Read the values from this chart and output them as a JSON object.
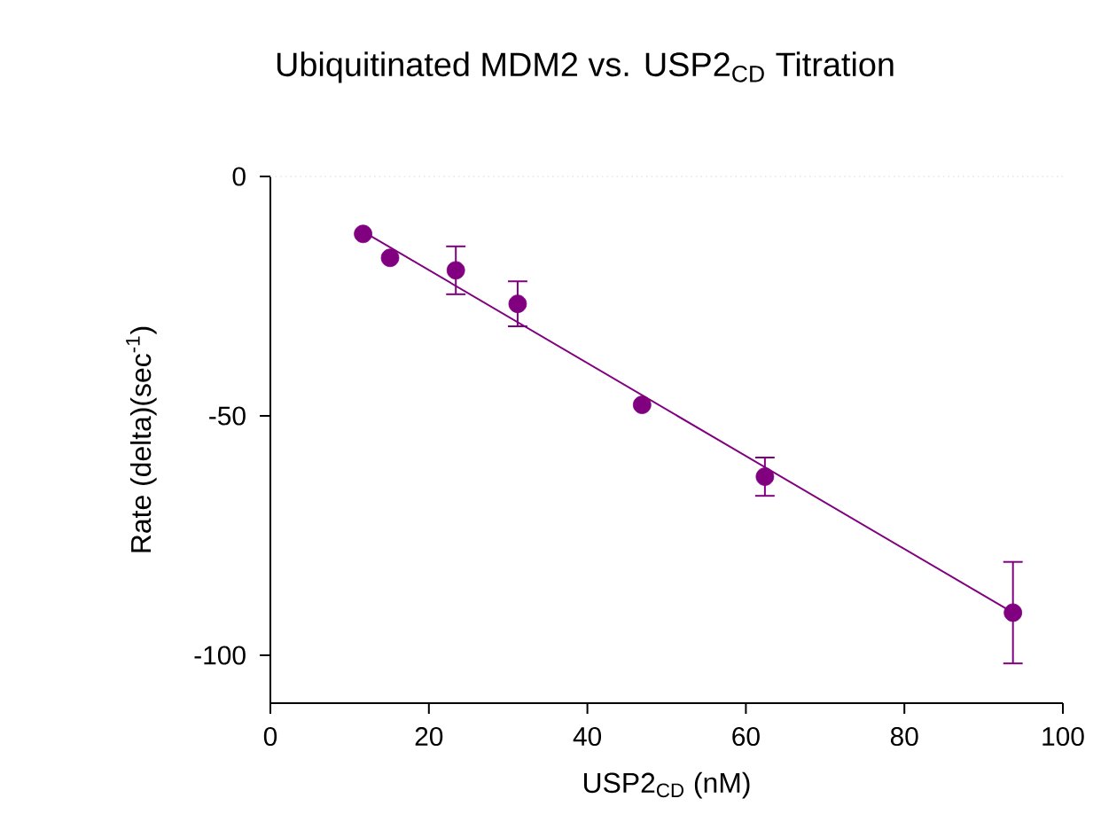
{
  "chart_data": {
    "type": "scatter",
    "title": "Ubiquitinated MDM2 vs. USP2$_{CD}$ Titration",
    "xlabel": "USP2$_{CD}$ (nM)",
    "ylabel": "Rate (delta)(sec$^{-1}$)",
    "xlim": [
      0,
      100
    ],
    "xticks": [
      0,
      20,
      40,
      60,
      80,
      100
    ],
    "ylim": [
      -110,
      0
    ],
    "yticks": [
      -100,
      -50,
      0
    ],
    "grid": false,
    "ref_lines": [
      {
        "axis": "y",
        "value": 0,
        "color": "#e6e6e6",
        "line_style": "dotted"
      }
    ],
    "series": [
      {
        "type": "scatter",
        "marker": "circle",
        "color": "#800080",
        "x": [
          11.7,
          15.1,
          23.4,
          31.2,
          46.9,
          62.4,
          93.7
        ],
        "values": [
          -12.0,
          -17.0,
          -19.6,
          -26.6,
          -47.7,
          -62.7,
          -91.1
        ],
        "errors": [
          null,
          null,
          5.0,
          4.7,
          null,
          4.0,
          10.6
        ]
      },
      {
        "type": "line",
        "color": "#800080",
        "marker": "none",
        "x": [
          11.7,
          93.7
        ],
        "values": [
          -11.5,
          -91.1
        ]
      }
    ]
  }
}
